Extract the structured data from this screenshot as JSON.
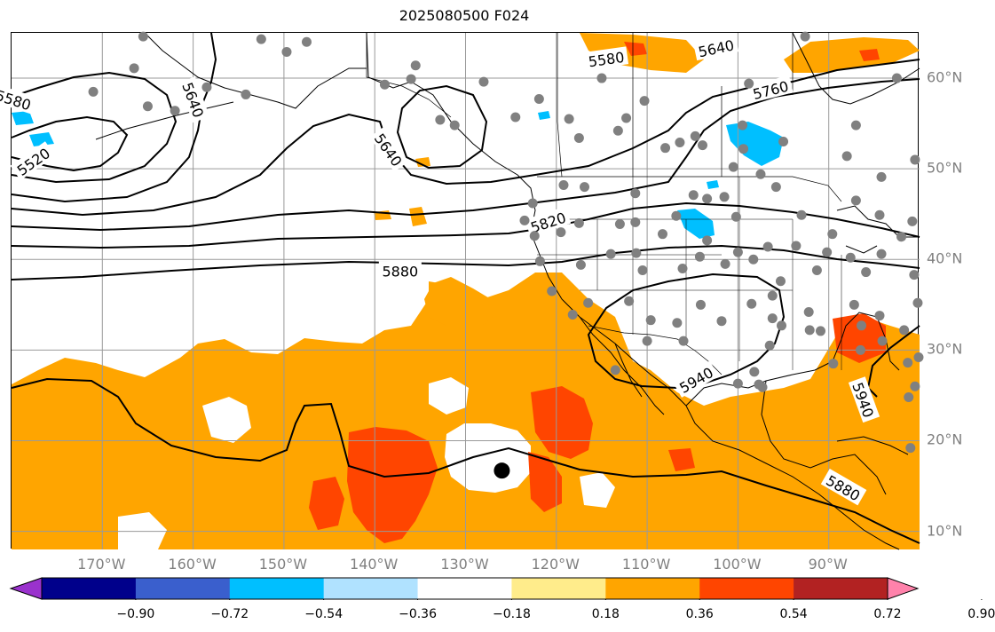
{
  "title": "2025080500 F024",
  "map": {
    "extent": {
      "lon_min": -180,
      "lon_max": -80,
      "lat_min": 8,
      "lat_max": 65
    },
    "lon_ticks": [
      {
        "lon": -170,
        "label": "170°W"
      },
      {
        "lon": -160,
        "label": "160°W"
      },
      {
        "lon": -150,
        "label": "150°W"
      },
      {
        "lon": -140,
        "label": "140°W"
      },
      {
        "lon": -130,
        "label": "130°W"
      },
      {
        "lon": -120,
        "label": "120°W"
      },
      {
        "lon": -110,
        "label": "110°W"
      },
      {
        "lon": -100,
        "label": "100°W"
      },
      {
        "lon": -90,
        "label": "90°W"
      }
    ],
    "lat_ticks": [
      {
        "lat": 60,
        "label": "60°N"
      },
      {
        "lat": 50,
        "label": "50°N"
      },
      {
        "lat": 40,
        "label": "40°N"
      },
      {
        "lat": 30,
        "label": "30°N"
      },
      {
        "lat": 20,
        "label": "20°N"
      },
      {
        "lat": 10,
        "label": "10°N"
      }
    ],
    "contour_labels": [
      {
        "text": "5580",
        "lon": -179.8,
        "lat": 57.6,
        "rot": 18
      },
      {
        "text": "5520",
        "lon": -177.6,
        "lat": 50.8,
        "rot": -35
      },
      {
        "text": "5640",
        "lon": -160,
        "lat": 57.6,
        "rot": 70
      },
      {
        "text": "5640",
        "lon": -138.5,
        "lat": 52.1,
        "rot": 55
      },
      {
        "text": "5580",
        "lon": -114.5,
        "lat": 62.1,
        "rot": -8
      },
      {
        "text": "5640",
        "lon": -102.4,
        "lat": 63.3,
        "rot": -12
      },
      {
        "text": "5760",
        "lon": -96.4,
        "lat": 58.7,
        "rot": -14
      },
      {
        "text": "5820",
        "lon": -120.9,
        "lat": 44.1,
        "rot": -18
      },
      {
        "text": "5880",
        "lon": -137.2,
        "lat": 38.7,
        "rot": 0
      },
      {
        "text": "5940",
        "lon": -104.6,
        "lat": 26.7,
        "rot": -30
      },
      {
        "text": "5940",
        "lon": -86.2,
        "lat": 24.5,
        "rot": 70
      },
      {
        "text": "5880",
        "lon": -88.4,
        "lat": 14.8,
        "rot": 30
      }
    ],
    "station_markers": [
      [
        -165.5,
        64.6
      ],
      [
        -149.7,
        62.9
      ],
      [
        -147.5,
        64.0
      ],
      [
        -152.5,
        64.3
      ],
      [
        -135.5,
        61.4
      ],
      [
        -166.5,
        61.1
      ],
      [
        -171.0,
        58.5
      ],
      [
        -154.2,
        58.2
      ],
      [
        -158.5,
        59.0
      ],
      [
        -165.0,
        56.9
      ],
      [
        -162.0,
        56.4
      ],
      [
        -138.9,
        59.3
      ],
      [
        -136.0,
        59.9
      ],
      [
        -131.2,
        54.8
      ],
      [
        -128.0,
        59.6
      ],
      [
        -121.9,
        57.7
      ],
      [
        -132.8,
        55.4
      ],
      [
        -124.5,
        55.7
      ],
      [
        -118.6,
        55.5
      ],
      [
        -117.5,
        53.4
      ],
      [
        -112.3,
        55.6
      ],
      [
        -110.3,
        57.5
      ],
      [
        -103.9,
        52.6
      ],
      [
        -108.0,
        52.3
      ],
      [
        -106.4,
        52.9
      ],
      [
        -104.7,
        53.6
      ],
      [
        -100.5,
        50.2
      ],
      [
        -99.5,
        54.8
      ],
      [
        -97.5,
        49.4
      ],
      [
        -95.0,
        53.0
      ],
      [
        -88.0,
        51.4
      ],
      [
        -87.0,
        54.8
      ],
      [
        -115.0,
        60.0
      ],
      [
        -98.8,
        59.4
      ],
      [
        -92.6,
        64.6
      ],
      [
        -84.2,
        49.1
      ],
      [
        -80.5,
        51.0
      ],
      [
        -82.5,
        60.0
      ],
      [
        -99.4,
        52.2
      ],
      [
        -113.2,
        54.2
      ],
      [
        -116.9,
        48.0
      ],
      [
        -119.2,
        48.2
      ],
      [
        -111.3,
        47.3
      ],
      [
        -111.3,
        44.1
      ],
      [
        -106.8,
        44.8
      ],
      [
        -101.5,
        46.9
      ],
      [
        -100.2,
        44.7
      ],
      [
        -104.9,
        47.1
      ],
      [
        -95.8,
        48.0
      ],
      [
        -103.4,
        46.7
      ],
      [
        -93.0,
        44.9
      ],
      [
        -87.0,
        46.5
      ],
      [
        -89.6,
        42.8
      ],
      [
        -84.4,
        44.9
      ],
      [
        -80.8,
        44.2
      ],
      [
        -82.0,
        42.5
      ],
      [
        -122.6,
        46.2
      ],
      [
        -123.5,
        44.3
      ],
      [
        -122.4,
        42.6
      ],
      [
        -119.5,
        43.0
      ],
      [
        -117.5,
        44.0
      ],
      [
        -113.0,
        43.9
      ],
      [
        -108.3,
        42.8
      ],
      [
        -103.4,
        42.1
      ],
      [
        -100.0,
        40.8
      ],
      [
        -96.7,
        41.4
      ],
      [
        -93.6,
        41.5
      ],
      [
        -90.2,
        40.8
      ],
      [
        -87.6,
        40.2
      ],
      [
        -84.2,
        40.6
      ],
      [
        -121.8,
        39.8
      ],
      [
        -117.3,
        39.4
      ],
      [
        -114.0,
        40.6
      ],
      [
        -111.2,
        40.7
      ],
      [
        -110.5,
        38.8
      ],
      [
        -106.1,
        39.0
      ],
      [
        -104.2,
        40.3
      ],
      [
        -101.4,
        39.5
      ],
      [
        -98.3,
        40.0
      ],
      [
        -95.3,
        37.6
      ],
      [
        -91.3,
        38.8
      ],
      [
        -85.9,
        38.6
      ],
      [
        -80.6,
        38.3
      ],
      [
        -120.5,
        36.5
      ],
      [
        -116.5,
        35.2
      ],
      [
        -112.0,
        35.4
      ],
      [
        -109.6,
        33.3
      ],
      [
        -106.7,
        33.0
      ],
      [
        -104.1,
        35.0
      ],
      [
        -101.8,
        33.2
      ],
      [
        -98.5,
        35.1
      ],
      [
        -96.2,
        36.0
      ],
      [
        -92.2,
        34.2
      ],
      [
        -90.9,
        32.1
      ],
      [
        -86.4,
        32.7
      ],
      [
        -84.4,
        33.8
      ],
      [
        -87.2,
        35.0
      ],
      [
        -81.7,
        32.2
      ],
      [
        -80.2,
        35.2
      ],
      [
        -96.2,
        33.5
      ],
      [
        -96.5,
        30.5
      ],
      [
        -95.2,
        32.7
      ],
      [
        -92.1,
        32.2
      ],
      [
        -89.5,
        28.5
      ],
      [
        -86.5,
        30.0
      ],
      [
        -84.1,
        31.0
      ],
      [
        -81.3,
        28.6
      ],
      [
        -80.5,
        26.0
      ],
      [
        -81.2,
        24.8
      ],
      [
        -80.1,
        29.2
      ],
      [
        -97.3,
        25.9
      ],
      [
        -98.2,
        27.6
      ],
      [
        -97.7,
        26.2
      ],
      [
        -110.0,
        31.0
      ],
      [
        -106.0,
        31.0
      ],
      [
        -113.5,
        27.8
      ],
      [
        -118.2,
        33.9
      ],
      [
        -100.0,
        26.3
      ],
      [
        -81.0,
        19.2
      ]
    ],
    "tc_marker": {
      "lon": -126.0,
      "lat": 16.7
    }
  },
  "colorbar": {
    "colors": [
      "#9a32cd",
      "#00008b",
      "#3a5fcd",
      "#00bfff",
      "#b0e2ff",
      "#ffffff",
      "#ffec8b",
      "#ffa500",
      "#ff4500",
      "#b22222",
      "#ff82ab"
    ],
    "ticks": [
      "−0.90",
      "−0.72",
      "−0.54",
      "−0.36",
      "−0.18",
      "0.18",
      "0.36",
      "0.54",
      "0.72",
      "0.90"
    ]
  }
}
